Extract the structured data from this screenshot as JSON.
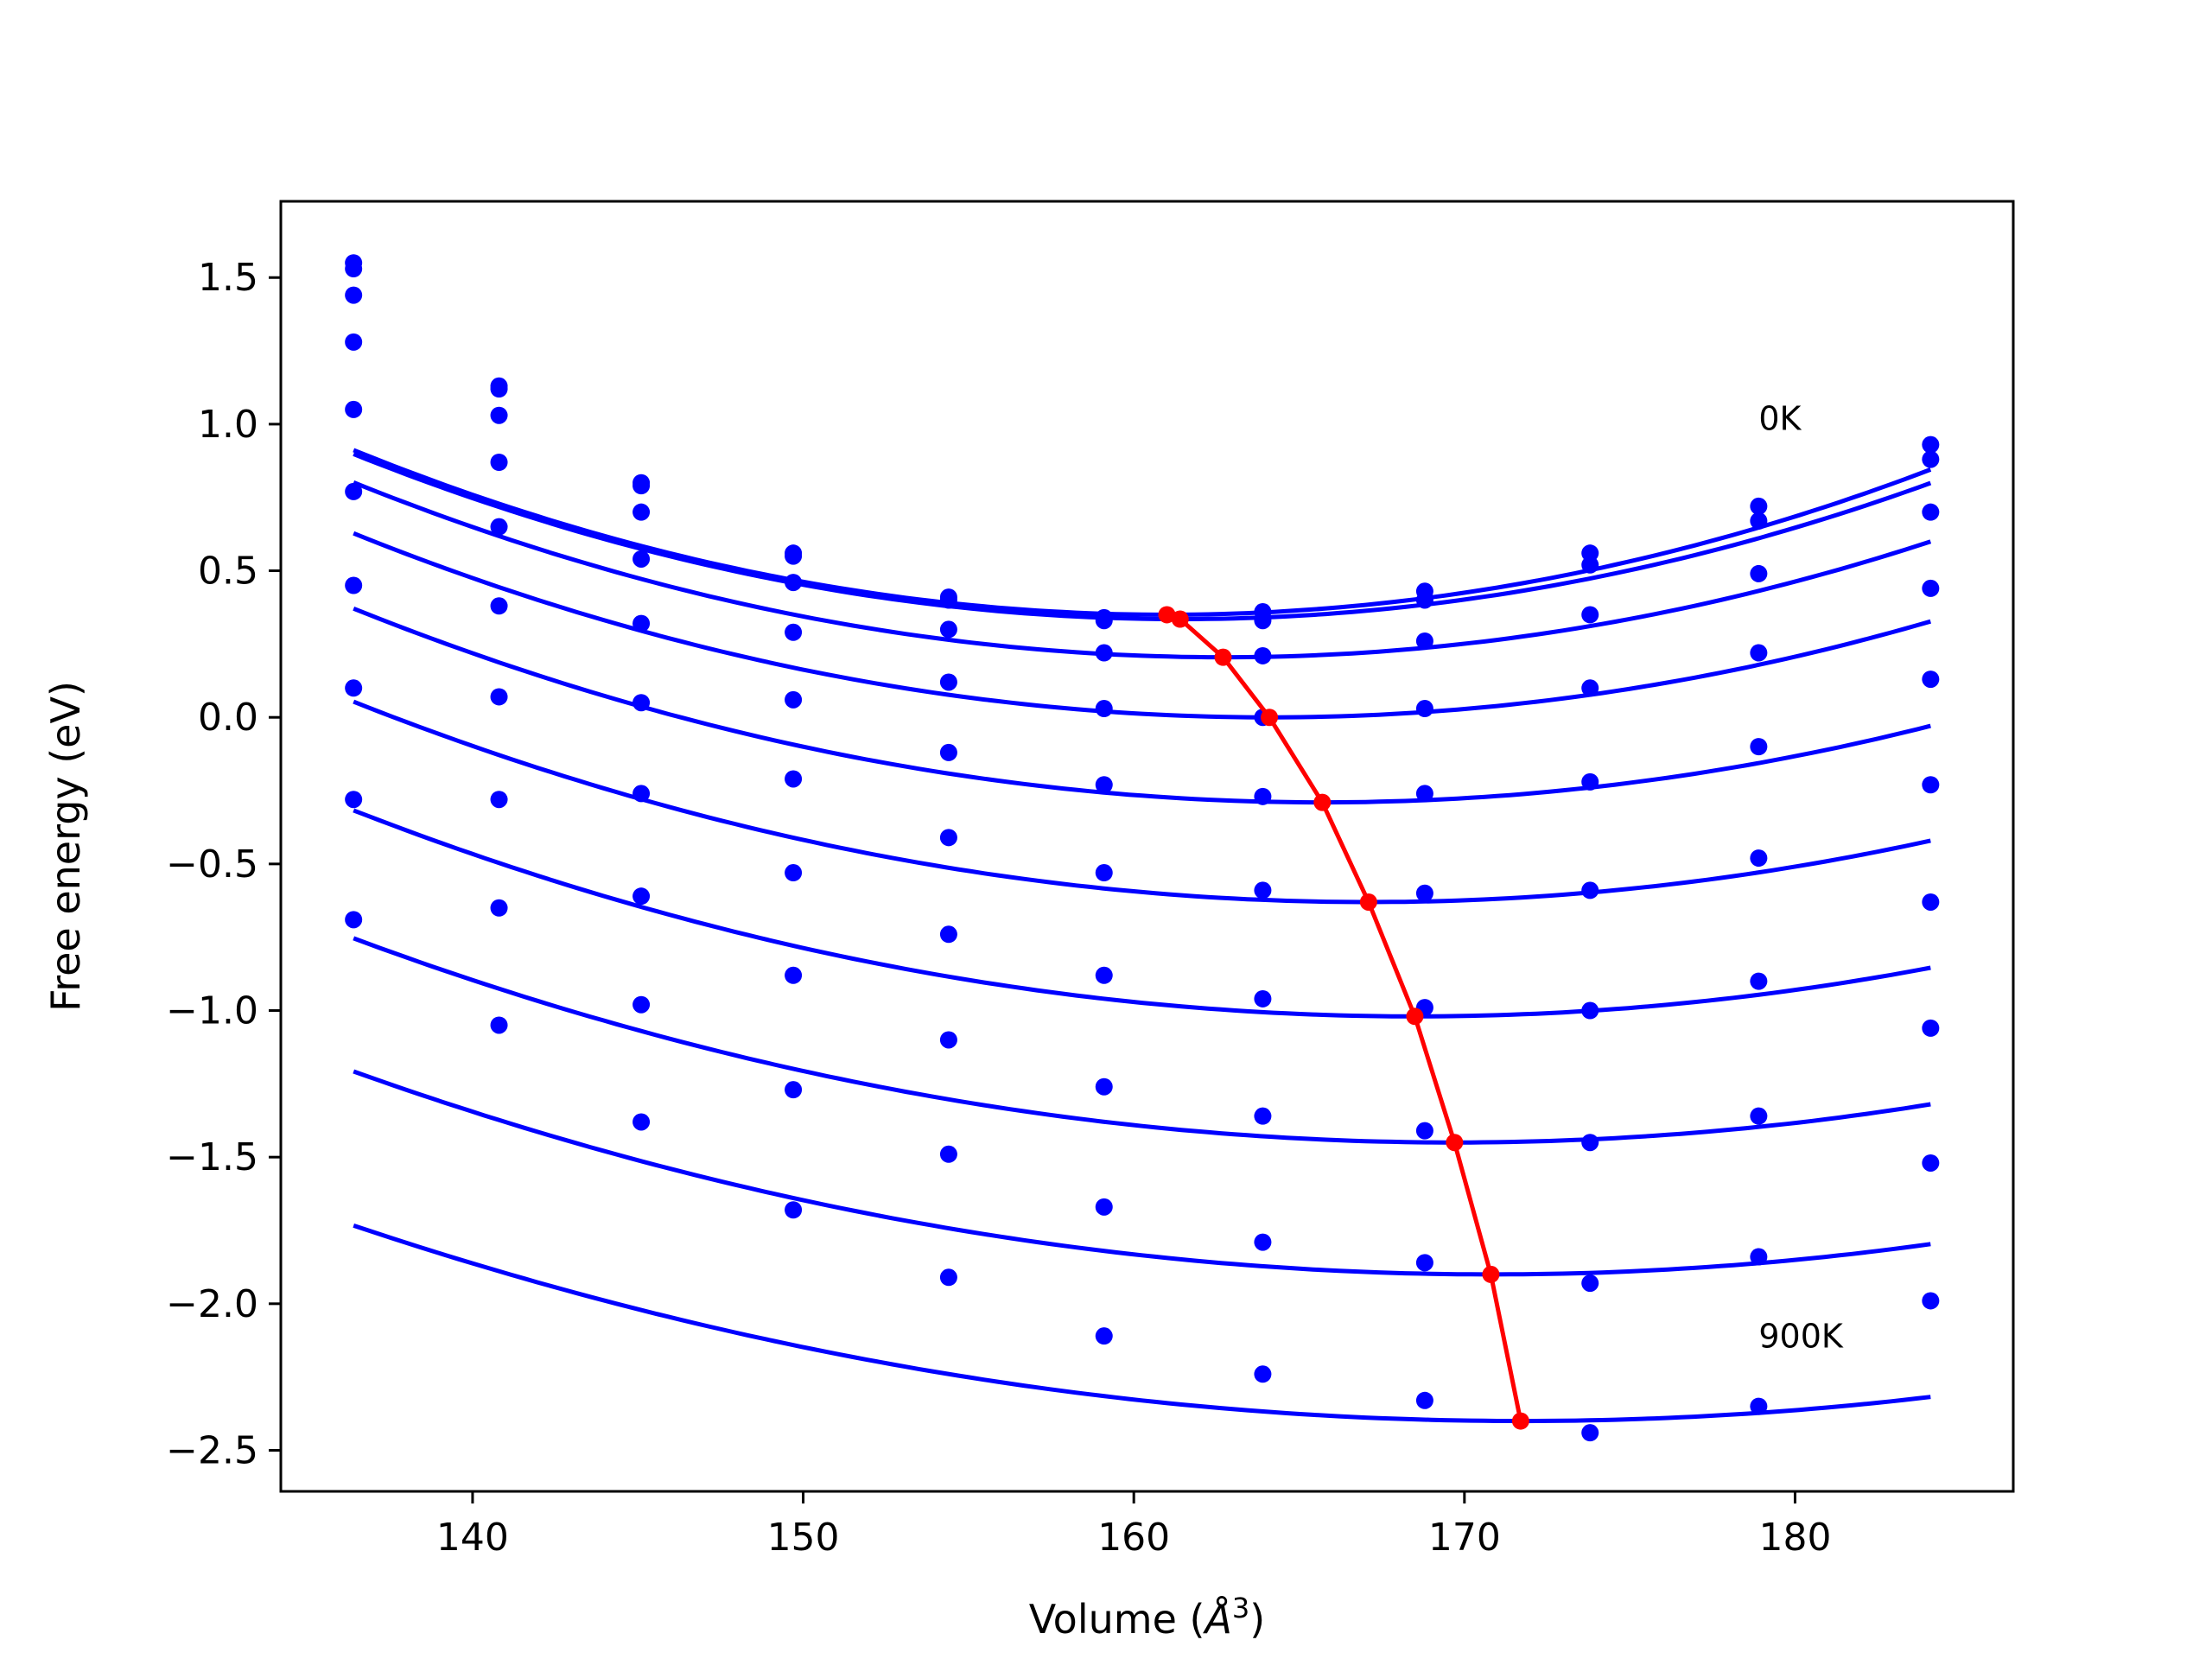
{
  "chart_data": {
    "type": "line",
    "title": "",
    "xlabel": "Volume (",
    "xlabel_symbol": "Å",
    "xlabel_exp": "3",
    "xlabel_close": ")",
    "ylabel": "Free energy (eV)",
    "xlim": [
      134.2,
      186.6
    ],
    "ylim": [
      -2.64,
      1.76
    ],
    "grid": false,
    "legend": "none",
    "xticks": [
      140,
      150,
      160,
      170,
      180
    ],
    "xtick_labels": [
      "140",
      "150",
      "160",
      "170",
      "180"
    ],
    "yticks": [
      1.5,
      1.0,
      0.5,
      0.0,
      -0.5,
      -1.0,
      -1.5,
      -2.0,
      -2.5
    ],
    "ytick_labels": [
      "1.5",
      "1.0",
      "0.5",
      "0.0",
      "−0.5",
      "−1.0",
      "−1.5",
      "−2.0",
      "−2.5"
    ],
    "colors": {
      "curves": "#0000ff",
      "points": "#0000ff",
      "equilibrium": "#ff0000"
    },
    "x": [
      136.4,
      140.8,
      145.1,
      149.7,
      154.4,
      159.1,
      163.9,
      168.8,
      173.8,
      178.9,
      184.1
    ],
    "series": [
      {
        "fit": {
          "v0": 161.0,
          "e0": 0.35,
          "a": 0.000928
        },
        "values": [
          1.55,
          1.13,
          0.8,
          0.56,
          0.41,
          0.34,
          0.36,
          0.43,
          0.56,
          0.72,
          0.93
        ]
      },
      {
        "fit": {
          "v0": 161.4,
          "e0": 0.335,
          "a": 0.000901
        },
        "values": [
          1.53,
          1.12,
          0.79,
          0.55,
          0.4,
          0.33,
          0.33,
          0.4,
          0.52,
          0.67,
          0.88
        ]
      },
      {
        "fit": {
          "v0": 162.7,
          "e0": 0.205,
          "a": 0.000862
        },
        "values": [
          1.44,
          1.03,
          0.7,
          0.46,
          0.3,
          0.22,
          0.21,
          0.26,
          0.35,
          0.49,
          0.7
        ]
      },
      {
        "fit": {
          "v0": 164.1,
          "e0": 0.0,
          "a": 0.000818
        },
        "values": [
          1.28,
          0.87,
          0.54,
          0.29,
          0.12,
          0.03,
          0.0,
          0.03,
          0.1,
          0.22,
          0.44
        ]
      },
      {
        "fit": {
          "v0": 165.7,
          "e0": -0.29,
          "a": 0.00077
        },
        "values": [
          1.05,
          0.65,
          0.32,
          0.06,
          -0.12,
          -0.23,
          -0.27,
          -0.26,
          -0.22,
          -0.1,
          0.13
        ]
      },
      {
        "fit": {
          "v0": 167.1,
          "e0": -0.63,
          "a": 0.000725
        },
        "values": [
          0.77,
          0.38,
          0.05,
          -0.21,
          -0.41,
          -0.53,
          -0.59,
          -0.6,
          -0.59,
          -0.48,
          -0.23
        ]
      },
      {
        "fit": {
          "v0": 168.5,
          "e0": -1.02,
          "a": 0.000682
        },
        "values": [
          0.45,
          0.07,
          -0.26,
          -0.53,
          -0.74,
          -0.88,
          -0.96,
          -0.99,
          -1.0,
          -0.9,
          -0.63
        ]
      },
      {
        "fit": {
          "v0": 169.7,
          "e0": -1.45,
          "a": 0.000628
        },
        "values": [
          0.1,
          -0.28,
          -0.61,
          -0.88,
          -1.1,
          -1.26,
          -1.36,
          -1.41,
          -1.45,
          -1.36,
          -1.06
        ]
      },
      {
        "fit": {
          "v0": 170.8,
          "e0": -1.9,
          "a": 0.000585
        },
        "values": [
          -0.28,
          -0.65,
          -0.98,
          -1.27,
          -1.49,
          -1.67,
          -1.79,
          -1.86,
          -1.93,
          -1.84,
          -1.52
        ]
      },
      {
        "fit": {
          "v0": 171.7,
          "e0": -2.4,
          "a": 0.000535
        },
        "values": [
          -0.69,
          -1.05,
          -1.38,
          -1.68,
          -1.91,
          -2.11,
          -2.24,
          -2.33,
          -2.44,
          -2.35,
          -1.99
        ]
      }
    ],
    "equilibrium": {
      "x": [
        161.0,
        161.4,
        162.7,
        164.1,
        165.7,
        167.1,
        168.5,
        169.7,
        170.8,
        171.7
      ],
      "y": [
        0.35,
        0.335,
        0.205,
        0.0,
        -0.29,
        -0.63,
        -1.02,
        -1.45,
        -1.9,
        -2.4
      ]
    },
    "annotations": [
      {
        "text": "0K",
        "x": 178.9,
        "y": 0.98
      },
      {
        "text": "900K",
        "x": 178.9,
        "y": -2.15
      }
    ]
  }
}
